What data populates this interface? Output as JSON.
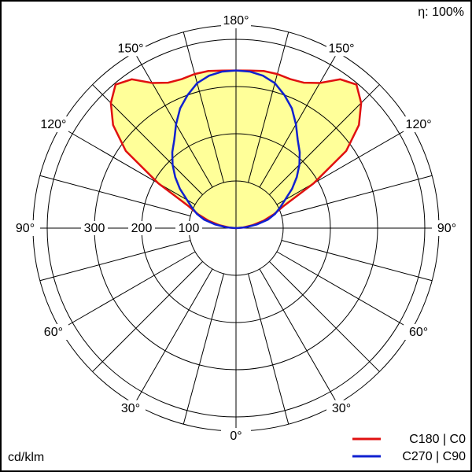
{
  "chart_data": {
    "type": "polar",
    "efficiency": "η: 100%",
    "unit": "cd/klm",
    "angles": [
      90,
      95,
      100,
      105,
      110,
      115,
      120,
      125,
      130,
      135,
      140,
      145,
      150,
      155,
      160,
      165,
      170,
      175,
      180
    ],
    "series": [
      {
        "name": "C180 | C0",
        "color": "#e01010",
        "fill": "#ffff99",
        "values": [
          0,
          15,
          35,
          60,
          85,
          112,
          190,
          285,
          340,
          375,
          397,
          385,
          355,
          340,
          336,
          338,
          338,
          335,
          334
        ]
      },
      {
        "name": "C270 | C90",
        "color": "#1020d0",
        "values": [
          0,
          20,
          45,
          70,
          88,
          103,
          120,
          145,
          168,
          190,
          210,
          228,
          254,
          280,
          300,
          318,
          328,
          333,
          334
        ]
      }
    ],
    "rlim": [
      0,
      430
    ],
    "rticks": [
      100,
      200,
      300
    ],
    "rgrid": [
      100,
      200,
      300,
      400
    ],
    "angle_grid_step": 15,
    "angle_ticks": [
      {
        "value": 0,
        "label": "0°"
      },
      {
        "value": 30,
        "label": "30°"
      },
      {
        "value": 60,
        "label": "60°"
      },
      {
        "value": 90,
        "label": "90°"
      },
      {
        "value": 120,
        "label": "120°"
      },
      {
        "value": 150,
        "label": "150°"
      },
      {
        "value": 180,
        "label": "180°"
      }
    ]
  }
}
